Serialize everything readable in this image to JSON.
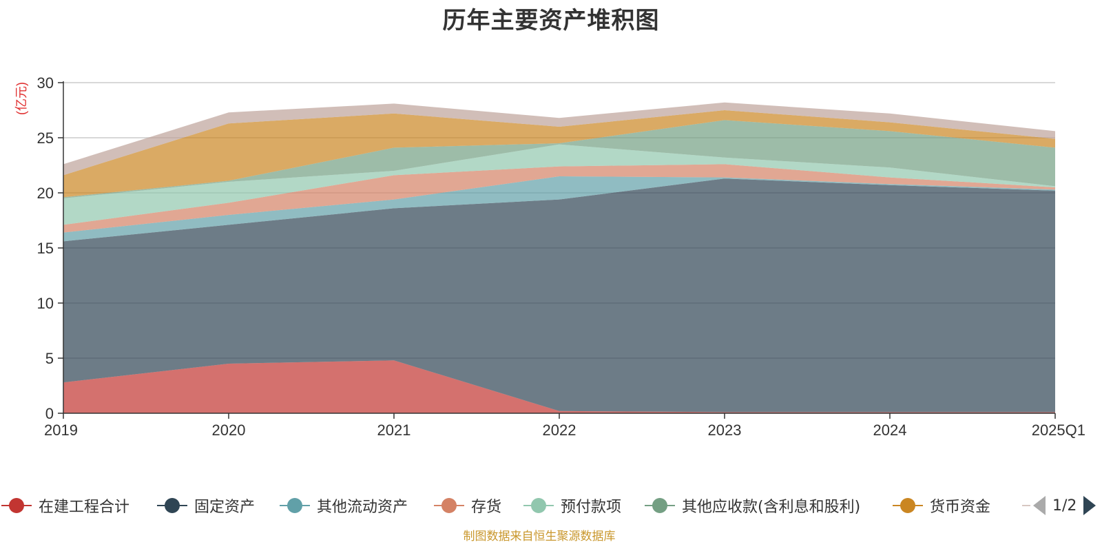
{
  "chart_data": {
    "type": "area",
    "title": "历年主要资产堆积图",
    "ylabel": "(亿元)",
    "xlabel": "",
    "categories": [
      "2019",
      "2020",
      "2021",
      "2022",
      "2023",
      "2024",
      "2025Q1"
    ],
    "ylim": [
      0,
      30
    ],
    "yticks": [
      "0",
      "5",
      "10",
      "15",
      "20",
      "25",
      "30"
    ],
    "stacked": true,
    "grid": true,
    "legend_position": "bottom",
    "series": [
      {
        "name": "在建工程合计",
        "color": "#c23531",
        "values": [
          2.8,
          4.5,
          4.8,
          0.2,
          0.1,
          0.1,
          0.1
        ]
      },
      {
        "name": "固定资产",
        "color": "#2f4554",
        "values": [
          12.8,
          12.6,
          13.8,
          19.2,
          21.2,
          20.6,
          20.1
        ]
      },
      {
        "name": "其他流动资产",
        "color": "#61a0a8",
        "values": [
          0.8,
          0.9,
          0.8,
          2.1,
          0.1,
          0.1,
          0.1
        ]
      },
      {
        "name": "存货",
        "color": "#d48265",
        "values": [
          0.7,
          1.1,
          2.2,
          0.9,
          1.2,
          0.6,
          0.2
        ]
      },
      {
        "name": "预付款项",
        "color": "#91c7ae",
        "values": [
          2.4,
          1.9,
          0.4,
          2.0,
          0.6,
          0.9,
          0.1
        ]
      },
      {
        "name": "其他应收款(含利息和股利)",
        "color": "#749f83",
        "values": [
          0.1,
          0.1,
          2.1,
          0.1,
          3.4,
          3.3,
          3.5
        ]
      },
      {
        "name": "货币资金",
        "color": "#ca8622",
        "values": [
          2.0,
          5.2,
          3.1,
          1.5,
          0.9,
          0.8,
          0.8
        ]
      },
      {
        "name": "",
        "color": "#bda29a",
        "values": [
          1.0,
          1.0,
          0.9,
          0.8,
          0.7,
          0.8,
          0.7
        ]
      }
    ]
  },
  "legend": {
    "items": [
      {
        "label": "在建工程合计",
        "color": "#c23531"
      },
      {
        "label": "固定资产",
        "color": "#2f4554"
      },
      {
        "label": "其他流动资产",
        "color": "#61a0a8"
      },
      {
        "label": "存货",
        "color": "#d48265"
      },
      {
        "label": "预付款项",
        "color": "#91c7ae"
      },
      {
        "label": "其他应收款(含利息和股利)",
        "color": "#749f83"
      },
      {
        "label": "货币资金",
        "color": "#ca8622"
      },
      {
        "label": "",
        "color": "#bda29a"
      }
    ],
    "page_indicator": "1/2"
  },
  "source_note": "制图数据来自恒生聚源数据库"
}
